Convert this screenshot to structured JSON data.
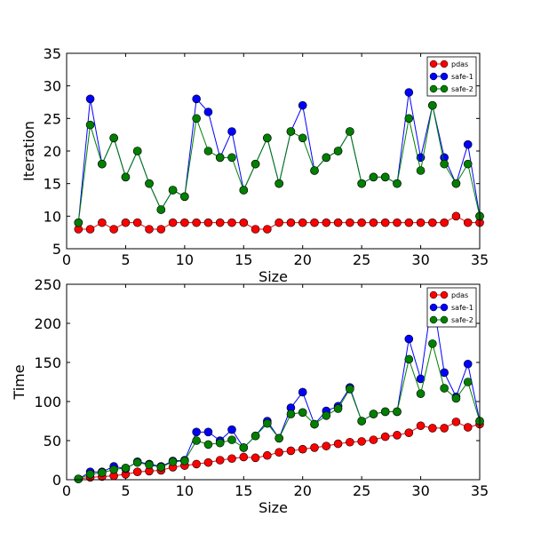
{
  "chart_data": [
    {
      "type": "line",
      "xlabel": "Size",
      "ylabel": "Iteration",
      "xlim": [
        0,
        35
      ],
      "ylim": [
        5,
        35
      ],
      "xticks": [
        0,
        5,
        10,
        15,
        20,
        25,
        30,
        35
      ],
      "yticks": [
        5,
        10,
        15,
        20,
        25,
        30,
        35
      ],
      "legend_position": "top-right",
      "x": [
        1,
        2,
        3,
        4,
        5,
        6,
        7,
        8,
        9,
        10,
        11,
        12,
        13,
        14,
        15,
        16,
        17,
        18,
        19,
        20,
        21,
        22,
        23,
        24,
        25,
        26,
        27,
        28,
        29,
        30,
        31,
        32,
        33,
        34,
        35
      ],
      "series": [
        {
          "name": "pdas",
          "color": "#ff0000",
          "values": [
            8,
            8,
            9,
            8,
            9,
            9,
            8,
            8,
            9,
            9,
            9,
            9,
            9,
            9,
            9,
            8,
            8,
            9,
            9,
            9,
            9,
            9,
            9,
            9,
            9,
            9,
            9,
            9,
            9,
            9,
            9,
            9,
            10,
            9,
            9
          ]
        },
        {
          "name": "safe-1",
          "color": "#0000ff",
          "values": [
            9,
            28,
            18,
            22,
            16,
            20,
            15,
            11,
            14,
            13,
            28,
            26,
            19,
            23,
            14,
            18,
            22,
            15,
            23,
            27,
            17,
            19,
            20,
            23,
            15,
            16,
            16,
            15,
            29,
            19,
            27,
            19,
            15,
            21,
            10
          ]
        },
        {
          "name": "safe-2",
          "color": "#008000",
          "values": [
            9,
            24,
            18,
            22,
            16,
            20,
            15,
            11,
            14,
            13,
            25,
            20,
            19,
            19,
            14,
            18,
            22,
            15,
            23,
            22,
            17,
            19,
            20,
            23,
            15,
            16,
            16,
            15,
            25,
            17,
            27,
            18,
            15,
            18,
            10
          ]
        }
      ]
    },
    {
      "type": "line",
      "xlabel": "Size",
      "ylabel": "Time",
      "xlim": [
        0,
        35
      ],
      "ylim": [
        0,
        250
      ],
      "xticks": [
        0,
        5,
        10,
        15,
        20,
        25,
        30,
        35
      ],
      "yticks": [
        0,
        50,
        100,
        150,
        200,
        250
      ],
      "legend_position": "top-right",
      "x": [
        1,
        2,
        3,
        4,
        5,
        6,
        7,
        8,
        9,
        10,
        11,
        12,
        13,
        14,
        15,
        16,
        17,
        18,
        19,
        20,
        21,
        22,
        23,
        24,
        25,
        26,
        27,
        28,
        29,
        30,
        31,
        32,
        33,
        34,
        35
      ],
      "series": [
        {
          "name": "pdas",
          "color": "#ff0000",
          "values": [
            1,
            3,
            4,
            5,
            7,
            10,
            11,
            12,
            16,
            18,
            20,
            22,
            25,
            27,
            29,
            28,
            31,
            35,
            37,
            39,
            41,
            43,
            46,
            48,
            49,
            51,
            55,
            57,
            60,
            69,
            66,
            66,
            74,
            67,
            71
          ]
        },
        {
          "name": "safe-1",
          "color": "#0000ff",
          "values": [
            1,
            10,
            10,
            17,
            14,
            23,
            20,
            17,
            24,
            25,
            61,
            61,
            50,
            64,
            41,
            56,
            75,
            53,
            92,
            112,
            71,
            88,
            94,
            118,
            75,
            84,
            87,
            87,
            180,
            129,
            235,
            137,
            106,
            148,
            75
          ]
        },
        {
          "name": "safe-2",
          "color": "#008000",
          "values": [
            1,
            7,
            9,
            13,
            15,
            22,
            19,
            16,
            23,
            24,
            50,
            45,
            47,
            51,
            41,
            56,
            72,
            53,
            84,
            86,
            71,
            82,
            91,
            116,
            75,
            84,
            87,
            87,
            154,
            110,
            174,
            117,
            104,
            125,
            75
          ]
        }
      ]
    }
  ]
}
